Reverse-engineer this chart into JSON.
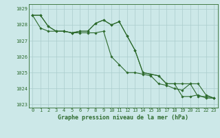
{
  "title": "Graphe pression niveau de la mer (hPa)",
  "xlabel_hours": [
    0,
    1,
    2,
    3,
    4,
    5,
    6,
    7,
    8,
    9,
    10,
    11,
    12,
    13,
    14,
    15,
    16,
    17,
    18,
    19,
    20,
    21,
    22,
    23
  ],
  "line1": [
    1028.6,
    1028.6,
    1027.9,
    1027.6,
    1027.6,
    1027.5,
    1027.6,
    1027.6,
    1028.1,
    1028.3,
    1028.0,
    1028.2,
    1027.3,
    1026.4,
    1025.0,
    1024.9,
    1024.8,
    1024.3,
    1024.3,
    1023.5,
    1023.5,
    1023.6,
    1023.4,
    1023.4
  ],
  "line2": [
    1028.6,
    1028.6,
    1027.9,
    1027.6,
    1027.6,
    1027.5,
    1027.6,
    1027.6,
    1028.1,
    1028.3,
    1028.0,
    1028.2,
    1027.3,
    1026.4,
    1025.0,
    1024.9,
    1024.8,
    1024.3,
    1024.3,
    1024.3,
    1024.3,
    1024.3,
    1023.6,
    1023.4
  ],
  "line3": [
    1028.6,
    1027.8,
    1027.6,
    1027.6,
    1027.6,
    1027.5,
    1027.5,
    1027.5,
    1027.5,
    1027.6,
    1026.0,
    1025.5,
    1025.0,
    1025.0,
    1024.9,
    1024.8,
    1024.3,
    1024.2,
    1024.0,
    1023.9,
    1024.3,
    1023.5,
    1023.5,
    1023.4
  ],
  "line_color": "#2d6a2d",
  "bg_color": "#cce8e8",
  "grid_color": "#aacccc",
  "ylim": [
    1022.8,
    1029.3
  ],
  "yticks": [
    1023,
    1024,
    1025,
    1026,
    1027,
    1028,
    1029
  ],
  "text_color": "#2d6a2d",
  "marker": "D",
  "markersize": 1.8,
  "linewidth": 0.8,
  "tick_fontsize": 5.0,
  "label_fontsize": 6.0
}
